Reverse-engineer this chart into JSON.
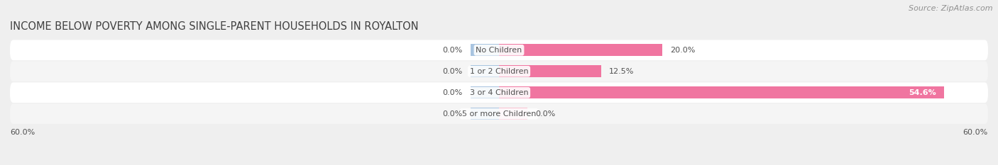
{
  "title": "INCOME BELOW POVERTY AMONG SINGLE-PARENT HOUSEHOLDS IN ROYALTON",
  "source": "Source: ZipAtlas.com",
  "categories": [
    "No Children",
    "1 or 2 Children",
    "3 or 4 Children",
    "5 or more Children"
  ],
  "father_values": [
    0.0,
    0.0,
    0.0,
    0.0
  ],
  "mother_values": [
    20.0,
    12.5,
    54.6,
    0.0
  ],
  "father_color": "#a8c4e0",
  "mother_color": "#f075a0",
  "mother_color_light": "#f9c0d0",
  "xlim": 60.0,
  "x_left_label": "60.0%",
  "x_right_label": "60.0%",
  "bar_height": 0.58,
  "bg_color": "#efefef",
  "row_even_color": "#ffffff",
  "row_odd_color": "#f5f5f5",
  "title_color": "#404040",
  "label_color": "#505050",
  "source_color": "#909090",
  "value_label_fontsize": 8,
  "category_fontsize": 8,
  "title_fontsize": 10.5,
  "source_fontsize": 8
}
